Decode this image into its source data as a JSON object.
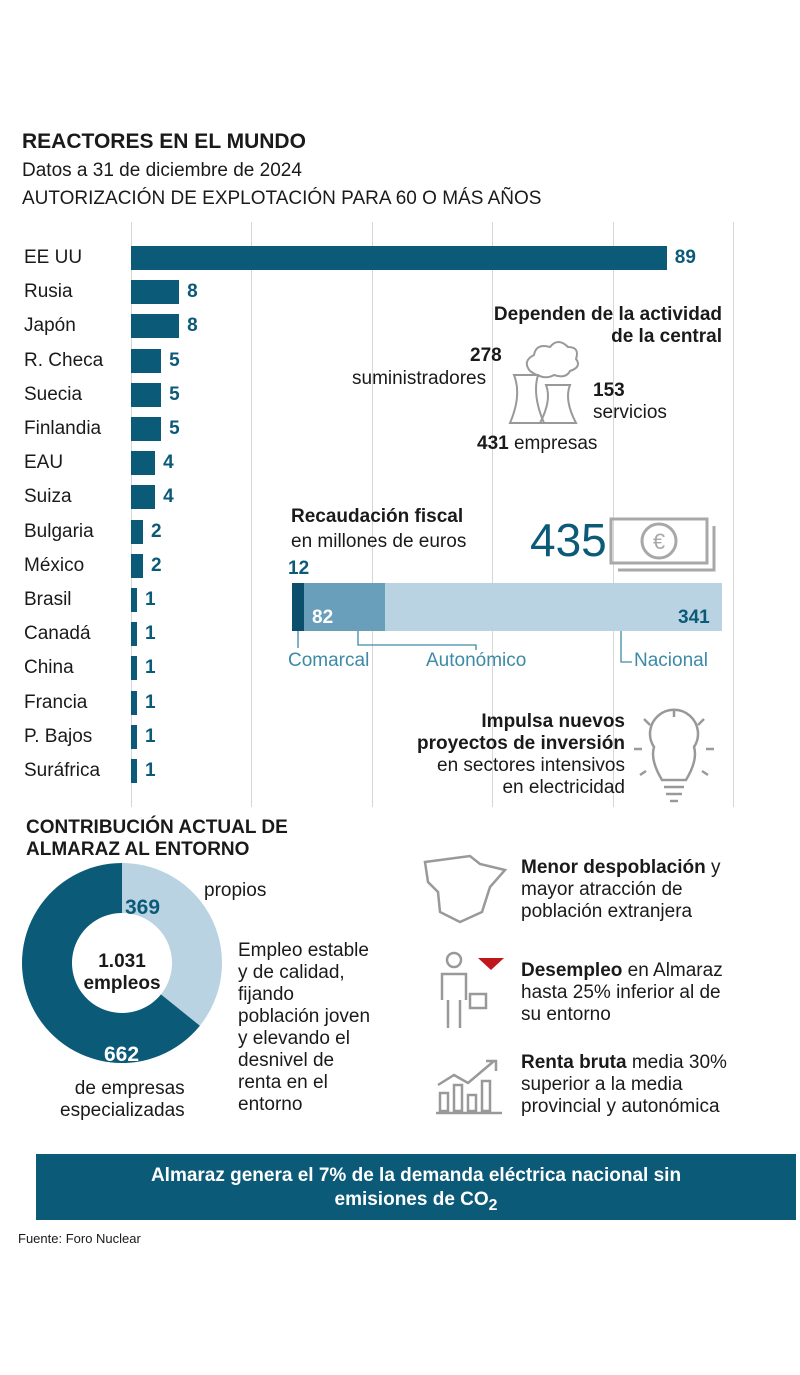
{
  "header": {
    "title": "REACTORES EN EL MUNDO",
    "subtitle": "Datos a 31 de diciembre de 2024",
    "chart_title": "AUTORIZACIÓN DE EXPLOTACIÓN  PARA 60 O MÁS AÑOS"
  },
  "chart_data": [
    {
      "type": "bar",
      "orientation": "horizontal",
      "title": "AUTORIZACIÓN DE EXPLOTACIÓN PARA 60 O MÁS AÑOS",
      "categories": [
        "EE UU",
        "Rusia",
        "Japón",
        "R. Checa",
        "Suecia",
        "Finlandia",
        "EAU",
        "Suiza",
        "Bulgaria",
        "México",
        "Brasil",
        "Canadá",
        "China",
        "Francia",
        "P. Bajos",
        "Suráfrica"
      ],
      "values": [
        89,
        8,
        8,
        5,
        5,
        5,
        4,
        4,
        2,
        2,
        1,
        1,
        1,
        1,
        1,
        1
      ],
      "xlim": [
        0,
        100
      ],
      "grid": true,
      "color": "#0b5a78"
    },
    {
      "type": "bar",
      "orientation": "stacked-horizontal",
      "title": "Recaudación fiscal",
      "subtitle": "en millones de euros",
      "total": "435",
      "categories": [
        "Comarcal",
        "Autonómico",
        "Nacional"
      ],
      "values": [
        12,
        82,
        341
      ],
      "colors": [
        "#0b4f6c",
        "#6a9fbb",
        "#b9d3e2"
      ]
    },
    {
      "type": "pie",
      "title": "CONTRIBUCIÓN ACTUAL DE ALMARAZ AL ENTORNO",
      "center_value": "1.031",
      "center_label": "empleos",
      "categories": [
        "propios",
        "de empresas especializadas"
      ],
      "values": [
        369,
        662
      ],
      "colors": [
        "#b9d3e2",
        "#0b5a78"
      ]
    }
  ],
  "dependencia": {
    "title1": "Dependen de la actividad",
    "title2": "de la central",
    "n1": "278",
    "l1": "suministradores",
    "n2": "153",
    "l2": "servicios",
    "n3": "431",
    "l3": "empresas"
  },
  "inversion": {
    "b1": "Impulsa nuevos",
    "b2": "proyectos de inversión",
    "l1": "en sectores intensivos",
    "l2": "en electricidad"
  },
  "contrib": {
    "title1": "CONTRIBUCIÓN ACTUAL DE",
    "title2": "ALMARAZ AL ENTORNO",
    "lines": [
      "Empleo estable",
      "y de calidad,",
      "fijando",
      "población joven",
      "y elevando el",
      "desnivel de",
      "renta en el",
      "entorno"
    ],
    "emp_label1": "de empresas",
    "emp_label2": "especializadas"
  },
  "facts": [
    {
      "bold": "Menor despoblación",
      "rest1": " y",
      "l2": "mayor atracción de",
      "l3": "población extranjera"
    },
    {
      "bold": "Desempleo",
      "rest1": " en Almaraz",
      "l2": "hasta 25% inferior al de",
      "l3": "su entorno"
    },
    {
      "bold": "Renta bruta",
      "rest1": " media 30%",
      "l2": "superior a la media",
      "l3": "provincial y autonómica"
    }
  ],
  "banner": {
    "l1": "Almaraz genera el 7% de la demanda eléctrica nacional sin",
    "l2": "emisiones de CO",
    "sub": "2"
  },
  "source": "Fuente: Foro Nuclear"
}
